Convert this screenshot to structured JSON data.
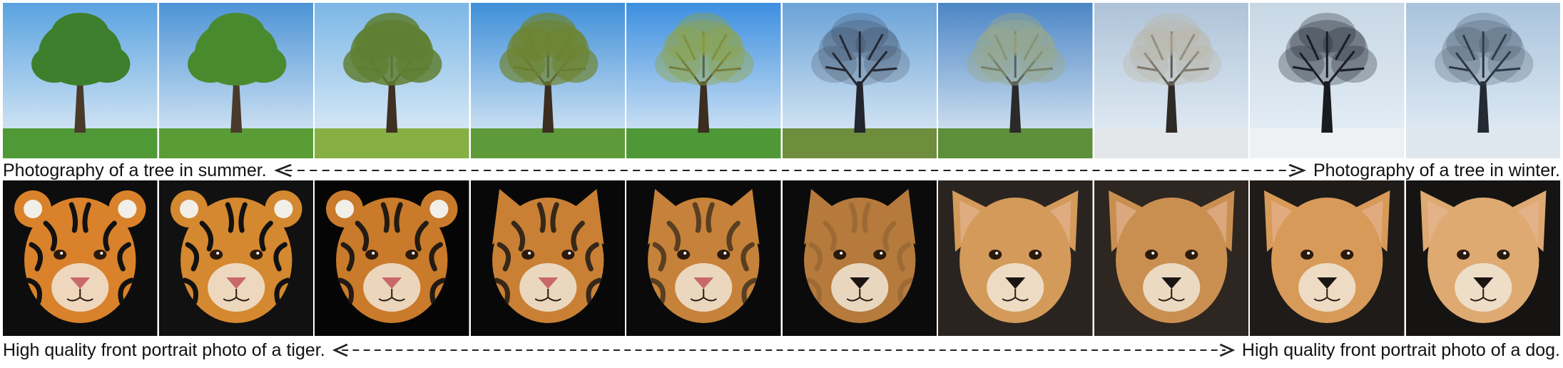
{
  "top_row": {
    "left_caption": "Photography of a tree in summer.",
    "right_caption": "Photography of a tree in winter.",
    "panels": [
      {
        "sky": "#5aa3e0",
        "ground": "#4f9a37",
        "foliage": "#3d7f2c",
        "trunk": "#4a3a2a",
        "density": 1.0
      },
      {
        "sky": "#4d94d6",
        "ground": "#5a9c35",
        "foliage": "#4a8a2e",
        "trunk": "#4a3a2a",
        "density": 1.0
      },
      {
        "sky": "#7cb7e6",
        "ground": "#86b043",
        "foliage": "#5f7f32",
        "trunk": "#3f3022",
        "density": 0.85
      },
      {
        "sky": "#3f8fd8",
        "ground": "#5f9a3a",
        "foliage": "#6e8432",
        "trunk": "#3b2d20",
        "density": 0.7
      },
      {
        "sky": "#3d8fe0",
        "ground": "#4e9838",
        "foliage": "#8fa44a",
        "trunk": "#3b2d20",
        "density": 0.45
      },
      {
        "sky": "#6aa3d8",
        "ground": "#6e8e3e",
        "foliage": "#2a2f3a",
        "trunk": "#22252d",
        "density": 0.2
      },
      {
        "sky": "#4c86c6",
        "ground": "#5e8f3a",
        "foliage": "#9aa98a",
        "trunk": "#2b2a28",
        "density": 0.45
      },
      {
        "sky": "#aec3d8",
        "ground": "#e3e7ea",
        "foliage": "#b9b4a4",
        "trunk": "#2e2a25",
        "density": 0.35
      },
      {
        "sky": "#c7d7e4",
        "ground": "#eef1f3",
        "foliage": "#1c222b",
        "trunk": "#181b20",
        "density": 0.3
      },
      {
        "sky": "#a9c3dc",
        "ground": "#dfe7ee",
        "foliage": "#3c4a5c",
        "trunk": "#232a34",
        "density": 0.25
      }
    ]
  },
  "bottom_row": {
    "left_caption": "High quality front portrait photo of a tiger.",
    "right_caption": "High quality front portrait photo of a dog.",
    "panels": [
      {
        "bg": "#0d0d0d",
        "fur": "#d9822b",
        "stripes": 1.0,
        "ears": "round"
      },
      {
        "bg": "#111111",
        "fur": "#d4882f",
        "stripes": 1.0,
        "ears": "round"
      },
      {
        "bg": "#050505",
        "fur": "#c97a2a",
        "stripes": 0.9,
        "ears": "round"
      },
      {
        "bg": "#080808",
        "fur": "#c98035",
        "stripes": 0.8,
        "ears": "pointed"
      },
      {
        "bg": "#0a0a0a",
        "fur": "#c6823a",
        "stripes": 0.6,
        "ears": "pointed"
      },
      {
        "bg": "#0b0b0b",
        "fur": "#b57a3c",
        "stripes": 0.15,
        "ears": "pointed"
      },
      {
        "bg": "#2a2420",
        "fur": "#d39a5a",
        "stripes": 0.0,
        "ears": "wide"
      },
      {
        "bg": "#2e2620",
        "fur": "#c98f50",
        "stripes": 0.0,
        "ears": "wide"
      },
      {
        "bg": "#1e1b19",
        "fur": "#d89a58",
        "stripes": 0.0,
        "ears": "wide"
      },
      {
        "bg": "#161412",
        "fur": "#deaa72",
        "stripes": 0.0,
        "ears": "wide"
      }
    ]
  },
  "colors": {
    "text": "#111111",
    "arrow": "#222222"
  },
  "icons": {
    "interpolation_arrow": "dashed-double-arrow-icon"
  }
}
